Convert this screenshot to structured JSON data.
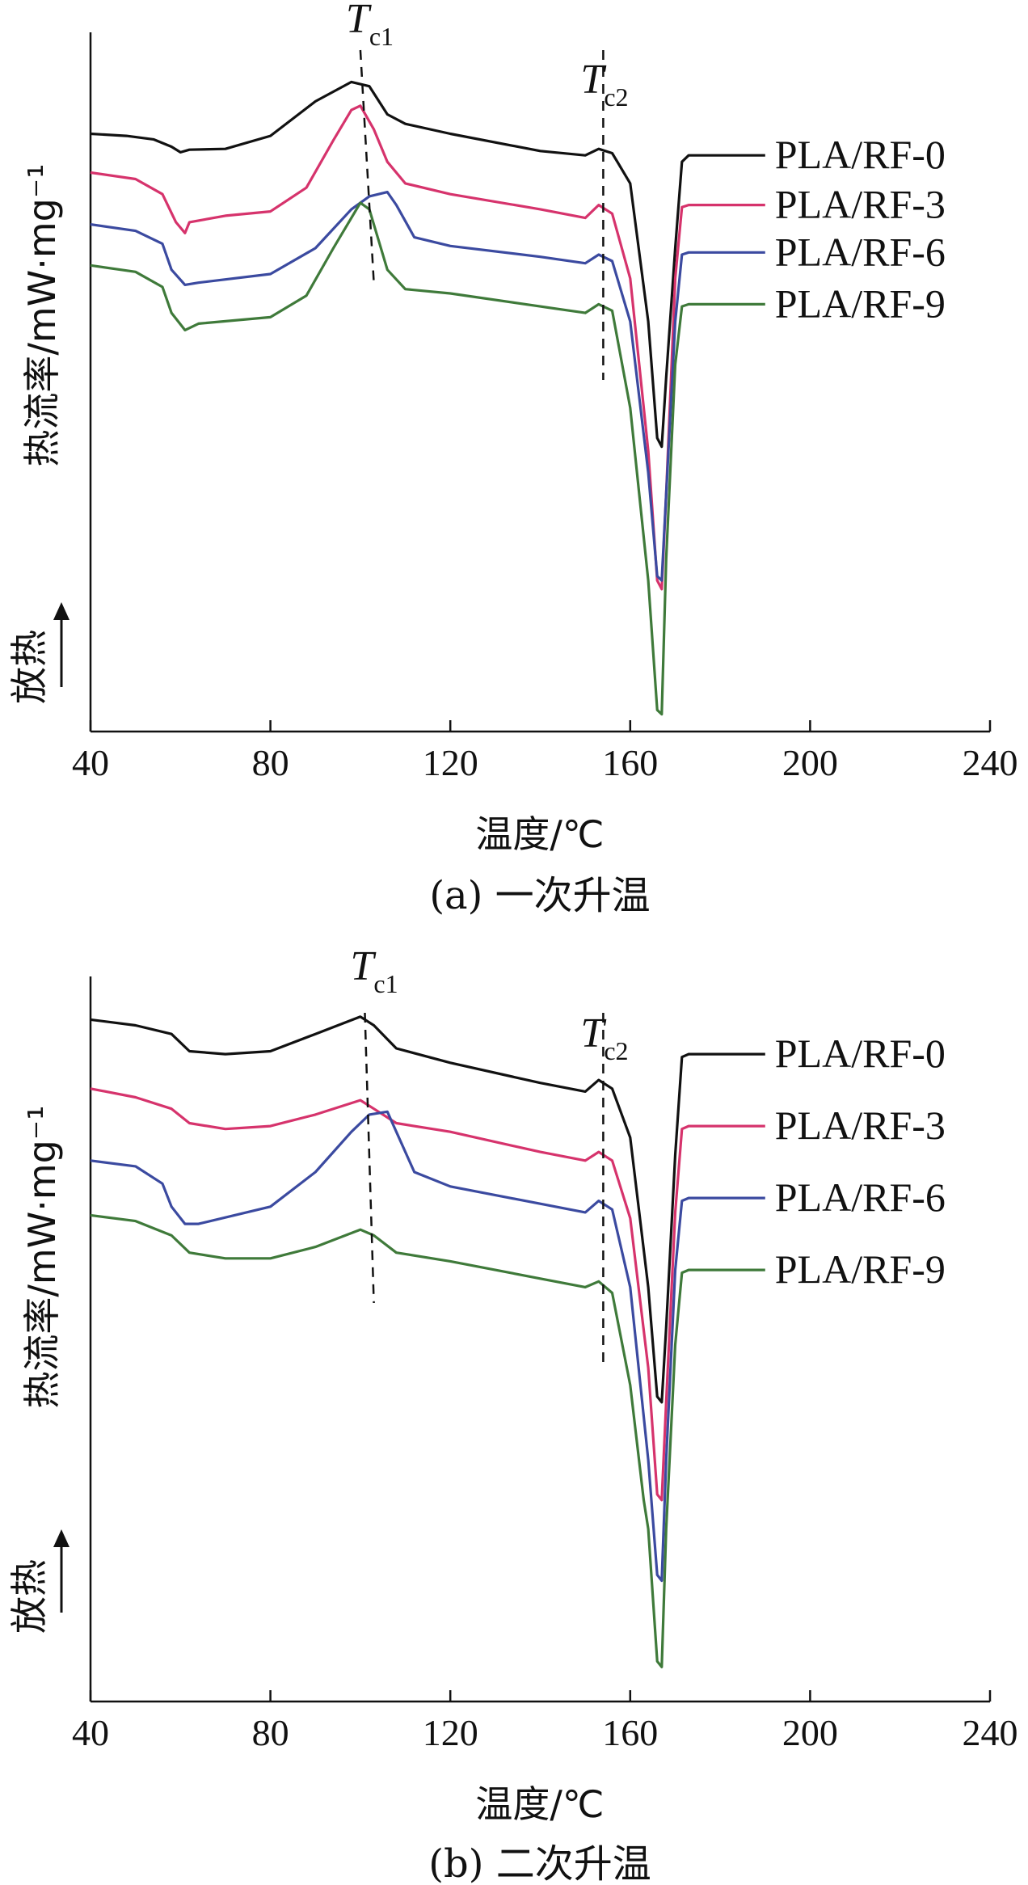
{
  "chart_data": [
    {
      "type": "line",
      "caption": "(a) 一次升温",
      "xlabel": "温度/℃",
      "ylabel": "热流率/mW·mg⁻¹",
      "exo_label": "放热",
      "xlim": [
        40,
        240
      ],
      "xticks": [
        40,
        80,
        120,
        160,
        200,
        240
      ],
      "annotations": [
        {
          "label": "T",
          "sub": "c1",
          "x_top": 100,
          "x_bottom": 103
        },
        {
          "label": "T",
          "sub": "c2",
          "x_top": 154,
          "x_bottom": 154
        }
      ],
      "series": [
        {
          "name": "PLA/RF-0",
          "color": "#111111",
          "points": [
            [
              40,
              0.85
            ],
            [
              48,
              0.8
            ],
            [
              54,
              0.72
            ],
            [
              58,
              0.55
            ],
            [
              60,
              0.42
            ],
            [
              62,
              0.48
            ],
            [
              70,
              0.5
            ],
            [
              80,
              0.8
            ],
            [
              90,
              1.6
            ],
            [
              98,
              2.05
            ],
            [
              102,
              1.95
            ],
            [
              106,
              1.3
            ],
            [
              110,
              1.08
            ],
            [
              120,
              0.85
            ],
            [
              140,
              0.45
            ],
            [
              150,
              0.35
            ],
            [
              153,
              0.5
            ],
            [
              156,
              0.4
            ],
            [
              160,
              -0.3
            ],
            [
              164,
              -3.5
            ],
            [
              166,
              -6.2
            ],
            [
              167,
              -6.4
            ],
            [
              168,
              -4.8
            ],
            [
              170,
              -1.8
            ],
            [
              171.5,
              0.2
            ],
            [
              173,
              0.35
            ],
            [
              190,
              0.35
            ]
          ]
        },
        {
          "name": "PLA/RF-3",
          "color": "#d6336c",
          "points": [
            [
              40,
              -0.05
            ],
            [
              50,
              -0.2
            ],
            [
              56,
              -0.55
            ],
            [
              59,
              -1.2
            ],
            [
              61,
              -1.45
            ],
            [
              62,
              -1.2
            ],
            [
              70,
              -1.05
            ],
            [
              80,
              -0.95
            ],
            [
              88,
              -0.4
            ],
            [
              94,
              0.7
            ],
            [
              98,
              1.4
            ],
            [
              100,
              1.5
            ],
            [
              103,
              0.95
            ],
            [
              106,
              0.2
            ],
            [
              110,
              -0.3
            ],
            [
              120,
              -0.55
            ],
            [
              140,
              -0.9
            ],
            [
              150,
              -1.1
            ],
            [
              153,
              -0.8
            ],
            [
              156,
              -1.0
            ],
            [
              160,
              -2.5
            ],
            [
              164,
              -6.5
            ],
            [
              166,
              -9.5
            ],
            [
              167,
              -9.7
            ],
            [
              168,
              -7.5
            ],
            [
              170,
              -2.5
            ],
            [
              171.5,
              -0.85
            ],
            [
              173,
              -0.8
            ],
            [
              190,
              -0.8
            ]
          ]
        },
        {
          "name": "PLA/RF-6",
          "color": "#3b4aa0",
          "points": [
            [
              40,
              -1.25
            ],
            [
              50,
              -1.4
            ],
            [
              56,
              -1.7
            ],
            [
              58,
              -2.3
            ],
            [
              61,
              -2.65
            ],
            [
              64,
              -2.6
            ],
            [
              80,
              -2.4
            ],
            [
              90,
              -1.8
            ],
            [
              98,
              -0.9
            ],
            [
              102,
              -0.6
            ],
            [
              106,
              -0.5
            ],
            [
              108,
              -0.8
            ],
            [
              112,
              -1.55
            ],
            [
              120,
              -1.75
            ],
            [
              140,
              -2.0
            ],
            [
              150,
              -2.15
            ],
            [
              153,
              -1.95
            ],
            [
              156,
              -2.1
            ],
            [
              160,
              -3.5
            ],
            [
              164,
              -7.0
            ],
            [
              166,
              -9.4
            ],
            [
              167,
              -9.5
            ],
            [
              168,
              -7.5
            ],
            [
              170,
              -3.5
            ],
            [
              171.5,
              -1.95
            ],
            [
              173,
              -1.9
            ],
            [
              190,
              -1.9
            ]
          ]
        },
        {
          "name": "PLA/RF-9",
          "color": "#3f7a3a",
          "points": [
            [
              40,
              -2.2
            ],
            [
              50,
              -2.35
            ],
            [
              56,
              -2.7
            ],
            [
              58,
              -3.3
            ],
            [
              61,
              -3.7
            ],
            [
              64,
              -3.55
            ],
            [
              80,
              -3.4
            ],
            [
              88,
              -2.9
            ],
            [
              94,
              -1.8
            ],
            [
              100,
              -0.75
            ],
            [
              102,
              -0.9
            ],
            [
              106,
              -2.3
            ],
            [
              110,
              -2.75
            ],
            [
              120,
              -2.85
            ],
            [
              140,
              -3.15
            ],
            [
              150,
              -3.3
            ],
            [
              153,
              -3.1
            ],
            [
              156,
              -3.25
            ],
            [
              160,
              -5.5
            ],
            [
              164,
              -9.5
            ],
            [
              166,
              -12.5
            ],
            [
              167,
              -12.6
            ],
            [
              168,
              -9.0
            ],
            [
              170,
              -4.5
            ],
            [
              171.5,
              -3.15
            ],
            [
              173,
              -3.1
            ],
            [
              190,
              -3.1
            ]
          ]
        }
      ]
    },
    {
      "type": "line",
      "caption": "(b) 二次升温",
      "xlabel": "温度/℃",
      "ylabel": "热流率/mW·mg⁻¹",
      "exo_label": "放热",
      "xlim": [
        40,
        240
      ],
      "xticks": [
        40,
        80,
        120,
        160,
        200,
        240
      ],
      "annotations": [
        {
          "label": "T",
          "sub": "c1",
          "x_top": 101,
          "x_bottom": 103
        },
        {
          "label": "T",
          "sub": "c2",
          "x_top": 154,
          "x_bottom": 154
        }
      ],
      "series": [
        {
          "name": "PLA/RF-0",
          "color": "#111111",
          "points": [
            [
              40,
              0.85
            ],
            [
              50,
              0.75
            ],
            [
              58,
              0.6
            ],
            [
              62,
              0.3
            ],
            [
              70,
              0.25
            ],
            [
              80,
              0.3
            ],
            [
              90,
              0.6
            ],
            [
              100,
              0.9
            ],
            [
              103,
              0.75
            ],
            [
              108,
              0.35
            ],
            [
              120,
              0.1
            ],
            [
              140,
              -0.25
            ],
            [
              150,
              -0.4
            ],
            [
              153,
              -0.2
            ],
            [
              156,
              -0.35
            ],
            [
              160,
              -1.2
            ],
            [
              164,
              -3.8
            ],
            [
              166,
              -5.7
            ],
            [
              167,
              -5.8
            ],
            [
              168,
              -4.5
            ],
            [
              170,
              -1.5
            ],
            [
              171.5,
              0.2
            ],
            [
              173,
              0.25
            ],
            [
              190,
              0.25
            ]
          ]
        },
        {
          "name": "PLA/RF-3",
          "color": "#d6336c",
          "points": [
            [
              40,
              -0.35
            ],
            [
              50,
              -0.5
            ],
            [
              58,
              -0.7
            ],
            [
              62,
              -0.95
            ],
            [
              70,
              -1.05
            ],
            [
              80,
              -1.0
            ],
            [
              90,
              -0.8
            ],
            [
              100,
              -0.55
            ],
            [
              103,
              -0.7
            ],
            [
              108,
              -0.95
            ],
            [
              120,
              -1.1
            ],
            [
              140,
              -1.45
            ],
            [
              150,
              -1.6
            ],
            [
              153,
              -1.45
            ],
            [
              156,
              -1.6
            ],
            [
              160,
              -2.6
            ],
            [
              164,
              -5.2
            ],
            [
              166,
              -7.4
            ],
            [
              167,
              -7.5
            ],
            [
              168,
              -5.8
            ],
            [
              170,
              -2.5
            ],
            [
              171.5,
              -1.05
            ],
            [
              173,
              -1.0
            ],
            [
              190,
              -1.0
            ]
          ]
        },
        {
          "name": "PLA/RF-6",
          "color": "#3b4aa0",
          "points": [
            [
              40,
              -1.6
            ],
            [
              50,
              -1.7
            ],
            [
              56,
              -2.0
            ],
            [
              58,
              -2.4
            ],
            [
              61,
              -2.7
            ],
            [
              64,
              -2.7
            ],
            [
              80,
              -2.4
            ],
            [
              90,
              -1.8
            ],
            [
              98,
              -1.1
            ],
            [
              102,
              -0.8
            ],
            [
              106,
              -0.75
            ],
            [
              108,
              -1.1
            ],
            [
              112,
              -1.8
            ],
            [
              120,
              -2.05
            ],
            [
              140,
              -2.35
            ],
            [
              150,
              -2.5
            ],
            [
              153,
              -2.3
            ],
            [
              156,
              -2.45
            ],
            [
              160,
              -3.8
            ],
            [
              164,
              -6.8
            ],
            [
              166,
              -8.8
            ],
            [
              167,
              -8.9
            ],
            [
              168,
              -6.8
            ],
            [
              170,
              -3.5
            ],
            [
              171.5,
              -2.3
            ],
            [
              173,
              -2.25
            ],
            [
              190,
              -2.25
            ]
          ]
        },
        {
          "name": "PLA/RF-9",
          "color": "#3f7a3a",
          "points": [
            [
              40,
              -2.55
            ],
            [
              50,
              -2.65
            ],
            [
              58,
              -2.9
            ],
            [
              62,
              -3.2
            ],
            [
              70,
              -3.3
            ],
            [
              80,
              -3.3
            ],
            [
              90,
              -3.1
            ],
            [
              100,
              -2.8
            ],
            [
              103,
              -2.9
            ],
            [
              108,
              -3.2
            ],
            [
              120,
              -3.35
            ],
            [
              140,
              -3.65
            ],
            [
              150,
              -3.8
            ],
            [
              153,
              -3.7
            ],
            [
              156,
              -3.9
            ],
            [
              160,
              -5.5
            ],
            [
              163,
              -7.5
            ],
            [
              164,
              -8.0
            ],
            [
              166,
              -10.3
            ],
            [
              167,
              -10.4
            ],
            [
              168,
              -8.0
            ],
            [
              170,
              -4.8
            ],
            [
              171.5,
              -3.55
            ],
            [
              173,
              -3.5
            ],
            [
              190,
              -3.5
            ]
          ]
        }
      ]
    }
  ]
}
